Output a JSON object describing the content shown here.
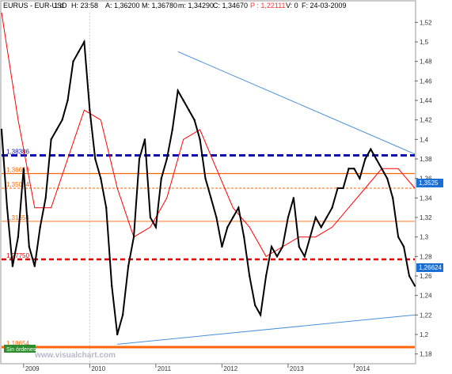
{
  "header": {
    "symbol": "EURUS - EUR-USD",
    "interval": "1 d",
    "high": "H: 23:58",
    "ask": "A: 1,36200",
    "max": "M: 1,36780",
    "min": "m: 1,34290",
    "close": "C: 1,34670",
    "p_value": "P : 1,22111",
    "volume": "V: 0",
    "f_value": "F: 24-03-2009"
  },
  "colors": {
    "price": "#000000",
    "moving_average": "#ff0000",
    "trendline": "#4a90d9",
    "support_resistance": "#1010b0",
    "red_dashed": "#e00000",
    "orange_level": "#ff6600",
    "price_tag_bg": "#1a6fd6",
    "sin_ordenes_bg": "#2e8b2e"
  },
  "current_price_tag": "1,26624",
  "level_tag": "1,3525",
  "sin_ordenes": "Sin órdenes",
  "watermark": "www.visualchart.com",
  "chart_data": {
    "type": "line",
    "instrument": "EUR-USD",
    "timeframe": "1 d",
    "x_range": [
      "2008-09",
      "2014-12"
    ],
    "ylim": [
      1.17,
      1.53
    ],
    "y_ticks": [
      "1,52",
      "1,5",
      "1,48",
      "1,46",
      "1,44",
      "1,42",
      "1,4",
      "1,38",
      "1,36",
      "1,34",
      "1,32",
      "1,3",
      "1,28",
      "1,26",
      "1,24",
      "1,22",
      "1,2",
      "1,18"
    ],
    "x_tick_labels": [
      "2009",
      "2010",
      "2011",
      "2012",
      "2013",
      "2014"
    ],
    "x_tick_dates": [
      "2009-01",
      "2010-01",
      "2011-01",
      "2012-01",
      "2013-01",
      "2014-01"
    ],
    "series": [
      {
        "x": [
          "2008-09",
          "2008-10",
          "2008-11",
          "2008-12",
          "2009-01",
          "2009-02",
          "2009-03",
          "2009-04",
          "2009-05",
          "2009-06",
          "2009-07",
          "2009-08",
          "2009-09",
          "2009-10",
          "2009-11",
          "2009-12",
          "2010-01",
          "2010-02",
          "2010-03",
          "2010-04",
          "2010-05",
          "2010-06",
          "2010-07",
          "2010-08",
          "2010-09",
          "2010-10",
          "2010-11",
          "2010-12",
          "2011-01",
          "2011-02",
          "2011-03",
          "2011-04",
          "2011-05",
          "2011-06",
          "2011-07",
          "2011-08",
          "2011-09",
          "2011-10",
          "2011-11",
          "2011-12",
          "2012-01",
          "2012-02",
          "2012-03",
          "2012-04",
          "2012-05",
          "2012-06",
          "2012-07",
          "2012-08",
          "2012-09",
          "2012-10",
          "2012-11",
          "2012-12",
          "2013-01",
          "2013-02",
          "2013-03",
          "2013-04",
          "2013-05",
          "2013-06",
          "2013-07",
          "2013-08",
          "2013-09",
          "2013-10",
          "2013-11",
          "2013-12",
          "2014-01",
          "2014-02",
          "2014-03",
          "2014-04",
          "2014-05",
          "2014-06",
          "2014-07",
          "2014-08",
          "2014-09",
          "2014-10",
          "2014-11",
          "2014-12"
        ],
        "values": [
          1.41,
          1.33,
          1.27,
          1.3,
          1.37,
          1.29,
          1.27,
          1.31,
          1.34,
          1.4,
          1.41,
          1.42,
          1.44,
          1.48,
          1.49,
          1.5,
          1.43,
          1.38,
          1.36,
          1.33,
          1.25,
          1.2,
          1.22,
          1.27,
          1.3,
          1.38,
          1.4,
          1.32,
          1.31,
          1.36,
          1.38,
          1.41,
          1.45,
          1.44,
          1.43,
          1.42,
          1.4,
          1.36,
          1.34,
          1.32,
          1.29,
          1.31,
          1.32,
          1.33,
          1.3,
          1.26,
          1.23,
          1.22,
          1.26,
          1.29,
          1.28,
          1.29,
          1.32,
          1.34,
          1.29,
          1.28,
          1.3,
          1.32,
          1.31,
          1.32,
          1.33,
          1.35,
          1.35,
          1.37,
          1.37,
          1.36,
          1.38,
          1.39,
          1.38,
          1.37,
          1.36,
          1.34,
          1.3,
          1.29,
          1.26,
          1.25
        ]
      },
      {
        "x": [
          "2008-09",
          "2008-12",
          "2009-03",
          "2009-06",
          "2009-09",
          "2009-12",
          "2010-03",
          "2010-06",
          "2010-09",
          "2010-12",
          "2011-03",
          "2011-06",
          "2011-09",
          "2011-12",
          "2012-03",
          "2012-06",
          "2012-09",
          "2012-12",
          "2013-03",
          "2013-06",
          "2013-09",
          "2013-12",
          "2014-03",
          "2014-06",
          "2014-09",
          "2014-12"
        ],
        "values": [
          1.53,
          1.42,
          1.33,
          1.33,
          1.38,
          1.43,
          1.42,
          1.35,
          1.3,
          1.31,
          1.34,
          1.4,
          1.41,
          1.37,
          1.33,
          1.31,
          1.28,
          1.29,
          1.3,
          1.3,
          1.31,
          1.33,
          1.35,
          1.37,
          1.37,
          1.35
        ]
      }
    ],
    "lines": [
      {
        "kind": "trendline",
        "x": [
          "2011-05",
          "2014-12"
        ],
        "y": [
          1.49,
          1.385
        ]
      },
      {
        "kind": "trendline",
        "x": [
          "2010-06",
          "2014-12"
        ],
        "y": [
          1.19,
          1.22
        ]
      },
      {
        "kind": "horizontal",
        "style": "dashed-blue",
        "y": 1.3836,
        "label": "1,38386"
      },
      {
        "kind": "horizontal",
        "style": "solid-orange",
        "y": 1.365,
        "label": "1,36659"
      },
      {
        "kind": "horizontal",
        "style": "dashed-orange",
        "y": 1.35,
        "label": "1,35054"
      },
      {
        "kind": "horizontal",
        "style": "solid-orange-thin",
        "y": 1.316,
        "label": "1,31654"
      },
      {
        "kind": "horizontal",
        "style": "dashed-red",
        "y": 1.277,
        "label": "1,27750"
      },
      {
        "kind": "horizontal",
        "style": "solid-orange-thick",
        "y": 1.187,
        "label": "1,18654"
      }
    ]
  }
}
